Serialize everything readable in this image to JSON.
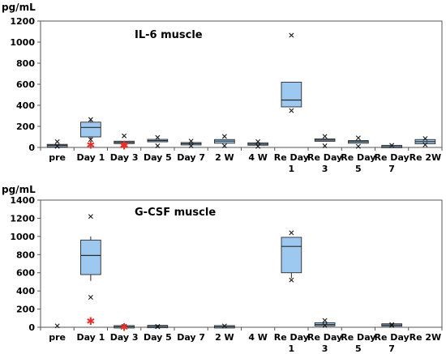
{
  "chart_data": [
    {
      "type": "boxplot",
      "unit": "pg/mL",
      "title": "IL-6 muscle",
      "ylim": [
        0,
        1200
      ],
      "yticks": [
        0,
        200,
        400,
        600,
        800,
        1000,
        1200
      ],
      "categories": [
        "pre",
        "Day 1",
        "Day 3",
        "Day 5",
        "Day 7",
        "2 W",
        "4 W",
        "Re Day 1",
        "Re Day 3",
        "Re Day 5",
        "Re Day 7",
        "Re 2W"
      ],
      "colors": {
        "box": "#9dc9f0",
        "box_edge": "#2a2a2a",
        "marker": "#1a1a1a",
        "outlier": "#e8302c"
      },
      "boxes": [
        {
          "q1": 10,
          "median": 20,
          "q3": 25,
          "whisker_low": null,
          "whisker_high": null,
          "x_markers": [
            55,
            10
          ],
          "outliers": []
        },
        {
          "q1": 100,
          "median": 190,
          "q3": 240,
          "whisker_low": 80,
          "whisker_high": 260,
          "x_markers": [
            265,
            75
          ],
          "outliers": [
            25
          ]
        },
        {
          "q1": 38,
          "median": 48,
          "q3": 58,
          "whisker_low": null,
          "whisker_high": null,
          "x_markers": [
            110
          ],
          "outliers": [
            15,
            25
          ]
        },
        {
          "q1": 55,
          "median": 65,
          "q3": 75,
          "whisker_low": null,
          "whisker_high": null,
          "x_markers": [
            95,
            15
          ],
          "outliers": []
        },
        {
          "q1": 25,
          "median": 35,
          "q3": 45,
          "whisker_low": null,
          "whisker_high": null,
          "x_markers": [
            60,
            15
          ],
          "outliers": []
        },
        {
          "q1": 40,
          "median": 60,
          "q3": 75,
          "whisker_low": null,
          "whisker_high": null,
          "x_markers": [
            105,
            15
          ],
          "outliers": []
        },
        {
          "q1": 25,
          "median": 32,
          "q3": 40,
          "whisker_low": null,
          "whisker_high": null,
          "x_markers": [
            55,
            10
          ],
          "outliers": []
        },
        {
          "q1": 385,
          "median": 450,
          "q3": 620,
          "whisker_low": null,
          "whisker_high": null,
          "x_markers": [
            1065,
            350
          ],
          "outliers": []
        },
        {
          "q1": 60,
          "median": 70,
          "q3": 80,
          "whisker_low": null,
          "whisker_high": null,
          "x_markers": [
            105,
            15
          ],
          "outliers": []
        },
        {
          "q1": 40,
          "median": 55,
          "q3": 65,
          "whisker_low": null,
          "whisker_high": null,
          "x_markers": [
            90,
            10
          ],
          "outliers": []
        },
        {
          "q1": 5,
          "median": 8,
          "q3": 12,
          "whisker_low": null,
          "whisker_high": null,
          "x_markers": [
            20
          ],
          "outliers": []
        },
        {
          "q1": 35,
          "median": 55,
          "q3": 75,
          "whisker_low": null,
          "whisker_high": null,
          "x_markers": [
            85,
            25
          ],
          "outliers": []
        }
      ]
    },
    {
      "type": "boxplot",
      "unit": "pg/mL",
      "title": "G-CSF muscle",
      "ylim": [
        0,
        1400
      ],
      "yticks": [
        0,
        200,
        400,
        600,
        800,
        1000,
        1200,
        1400
      ],
      "categories": [
        "pre",
        "Day 1",
        "Day 3",
        "Day 5",
        "Day 7",
        "2 W",
        "4 W",
        "Re Day 1",
        "Re Day 3",
        "Re Day 5",
        "Re Day 7",
        "Re 2W"
      ],
      "colors": {
        "box": "#9dc9f0",
        "box_edge": "#2a2a2a",
        "marker": "#1a1a1a",
        "outlier": "#e8302c"
      },
      "boxes": [
        {
          "q1": null,
          "median": null,
          "q3": null,
          "whisker_low": null,
          "whisker_high": null,
          "x_markers": [
            15
          ],
          "outliers": []
        },
        {
          "q1": 580,
          "median": 790,
          "q3": 960,
          "whisker_low": 510,
          "whisker_high": 1000,
          "x_markers": [
            1220,
            330
          ],
          "outliers": [
            65
          ]
        },
        {
          "q1": 2,
          "median": 5,
          "q3": 8,
          "whisker_low": null,
          "whisker_high": null,
          "x_markers": [
            10
          ],
          "outliers": [
            0
          ]
        },
        {
          "q1": 3,
          "median": 8,
          "q3": 12,
          "whisker_low": null,
          "whisker_high": null,
          "x_markers": [
            10,
            5
          ],
          "outliers": []
        },
        {
          "q1": null,
          "median": null,
          "q3": null,
          "whisker_low": null,
          "whisker_high": null,
          "x_markers": [],
          "outliers": []
        },
        {
          "q1": 2,
          "median": 5,
          "q3": 8,
          "whisker_low": null,
          "whisker_high": null,
          "x_markers": [
            15
          ],
          "outliers": []
        },
        {
          "q1": null,
          "median": null,
          "q3": null,
          "whisker_low": null,
          "whisker_high": null,
          "x_markers": [],
          "outliers": []
        },
        {
          "q1": 600,
          "median": 890,
          "q3": 990,
          "whisker_low": 540,
          "whisker_high": null,
          "x_markers": [
            1040,
            520
          ],
          "outliers": []
        },
        {
          "q1": 15,
          "median": 30,
          "q3": 50,
          "whisker_low": null,
          "whisker_high": null,
          "x_markers": [
            75,
            20
          ],
          "outliers": []
        },
        {
          "q1": null,
          "median": null,
          "q3": null,
          "whisker_low": null,
          "whisker_high": null,
          "x_markers": [],
          "outliers": []
        },
        {
          "q1": 20,
          "median": 25,
          "q3": 30,
          "whisker_low": null,
          "whisker_high": null,
          "x_markers": [
            30,
            20
          ],
          "outliers": []
        },
        {
          "q1": null,
          "median": null,
          "q3": null,
          "whisker_low": null,
          "whisker_high": null,
          "x_markers": [],
          "outliers": []
        }
      ]
    }
  ]
}
